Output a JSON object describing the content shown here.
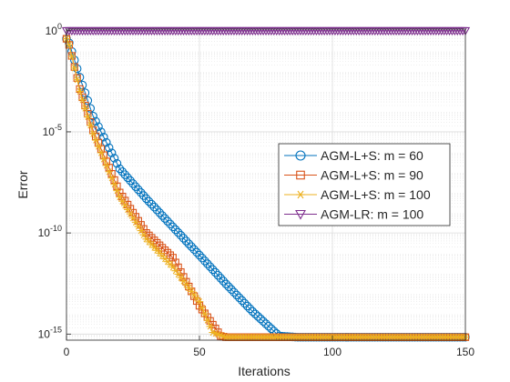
{
  "chart_data": {
    "type": "line",
    "title": "",
    "xlabel": "Iterations",
    "ylabel": "Error",
    "xlim": [
      0,
      150
    ],
    "ylim": [
      5e-16,
      1.2
    ],
    "yscale": "log",
    "grid": true,
    "minor_grid": true,
    "legend_position": "right, vertically centered",
    "x_ticks": [
      0,
      50,
      100,
      150
    ],
    "y_ticks": [
      {
        "value": 1,
        "base": "10",
        "exp": "0"
      },
      {
        "value": 1e-05,
        "base": "10",
        "exp": "-5"
      },
      {
        "value": 1e-10,
        "base": "10",
        "exp": "-10"
      },
      {
        "value": 1e-15,
        "base": "10",
        "exp": "-15"
      }
    ],
    "series": [
      {
        "name": "AGM-L+S: m = 60",
        "color": "#0072BD",
        "marker": "circle",
        "x": [
          0,
          1,
          5,
          10,
          20,
          30,
          40,
          50,
          60,
          70,
          80,
          87,
          90,
          100,
          120,
          150
        ],
        "y": [
          0.4,
          0.25,
          0.005,
          6e-05,
          1.5e-07,
          5e-09,
          2e-10,
          8e-12,
          3e-13,
          1.3e-14,
          8e-16,
          7e-16,
          7e-16,
          7e-16,
          7e-16,
          7e-16
        ]
      },
      {
        "name": "AGM-L+S: m = 90",
        "color": "#D95319",
        "marker": "square",
        "x": [
          0,
          1,
          5,
          10,
          20,
          30,
          40,
          50,
          58,
          60,
          70,
          100,
          150
        ],
        "y": [
          0.4,
          0.2,
          0.0013,
          1.2e-05,
          1e-08,
          1e-10,
          6e-12,
          2.5e-14,
          8e-16,
          7e-16,
          7e-16,
          7e-16,
          7e-16
        ]
      },
      {
        "name": "AGM-L+S: m = 100",
        "color": "#EDB120",
        "marker": "asterisk",
        "x": [
          0,
          1,
          5,
          10,
          20,
          30,
          40,
          50,
          55,
          60,
          70,
          100,
          150
        ],
        "y": [
          0.4,
          0.2,
          0.001,
          8e-06,
          6e-09,
          5e-11,
          2e-12,
          4e-14,
          1.2e-15,
          7e-16,
          7e-16,
          7e-16,
          7e-16
        ]
      },
      {
        "name": "AGM-LR: m = 100",
        "color": "#7E2F8E",
        "marker": "triangle-down",
        "x": [
          0,
          150
        ],
        "y": [
          1,
          1
        ]
      }
    ]
  }
}
